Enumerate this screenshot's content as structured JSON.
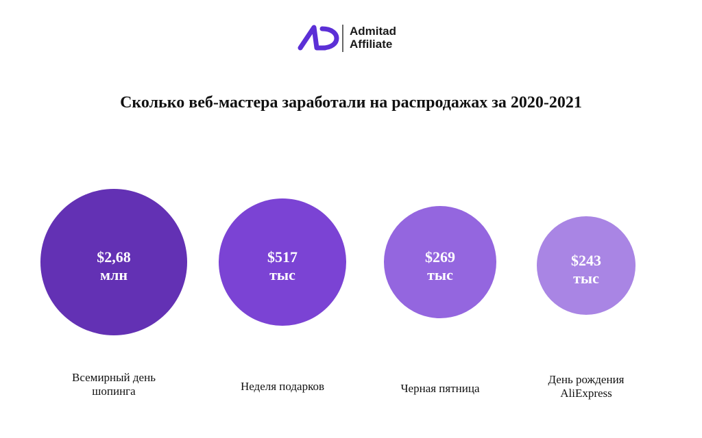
{
  "logo": {
    "line1": "Admitad",
    "line2": "Affiliate"
  },
  "title": "Сколько веб-мастера заработали на распродажах за 2020-2021",
  "items": [
    {
      "value": "$2,68",
      "unit": "млн",
      "label": "Всемирный день шопинга",
      "color": "#6331b4"
    },
    {
      "value": "$517",
      "unit": "тыс",
      "label": "Неделя подарков",
      "color": "#7b43d4"
    },
    {
      "value": "$269",
      "unit": "тыс",
      "label": "Черная пятница",
      "color": "#9466df"
    },
    {
      "value": "$243",
      "unit": "тыс",
      "label": "День рождения AliExpress",
      "color": "#a985e4"
    }
  ]
}
